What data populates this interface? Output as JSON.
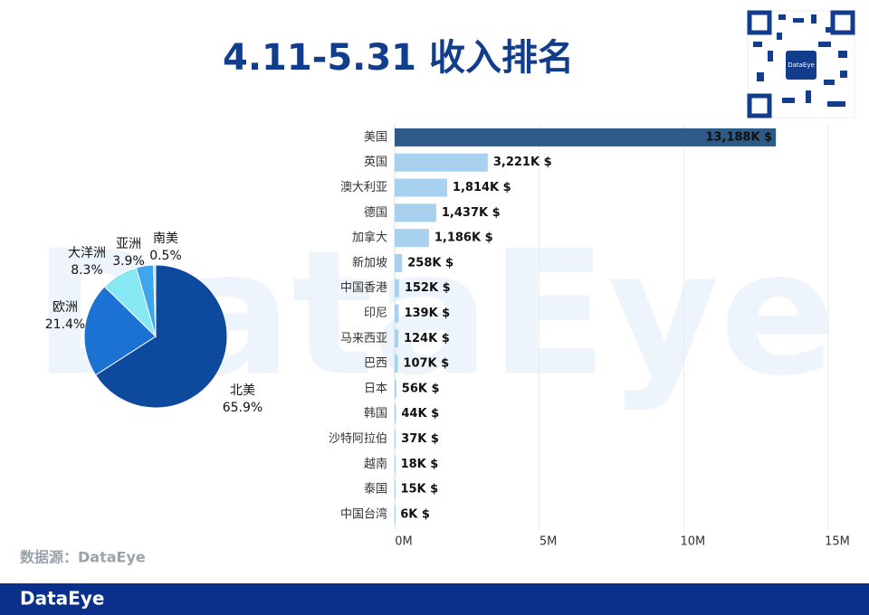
{
  "title": "4.11-5.31 收入排名",
  "watermark": "DataEye",
  "source": "数据源：DataEye",
  "brand": "DataEye",
  "chart_data": [
    {
      "type": "pie",
      "categories": [
        "北美",
        "欧洲",
        "大洋洲",
        "亚洲",
        "南美"
      ],
      "values": [
        65.9,
        21.4,
        8.3,
        3.9,
        0.5
      ],
      "value_labels": [
        "65.9%",
        "21.4%",
        "8.3%",
        "3.9%",
        "0.5%"
      ],
      "colors": [
        "#0d4a9e",
        "#1c72d2",
        "#86e8f2",
        "#3ea6ea",
        "#b9dcf5"
      ]
    },
    {
      "type": "hbar",
      "categories": [
        "美国",
        "英国",
        "澳大利亚",
        "德国",
        "加拿大",
        "新加坡",
        "中国香港",
        "印尼",
        "马来西亚",
        "巴西",
        "日本",
        "韩国",
        "沙特阿拉伯",
        "越南",
        "泰国",
        "中国台湾"
      ],
      "values": [
        13188000,
        3221000,
        1814000,
        1437000,
        1186000,
        258000,
        152000,
        139000,
        124000,
        107000,
        56000,
        44000,
        37000,
        18000,
        15000,
        6000
      ],
      "value_labels": [
        "13,188K $",
        "3,221K $",
        "1,814K $",
        "1,437K $",
        "1,186K $",
        "258K $",
        "152K $",
        "139K $",
        "124K $",
        "107K $",
        "56K $",
        "44K $",
        "37K $",
        "18K $",
        "15K $",
        "6K $"
      ],
      "colors": [
        "#2d5a86",
        "#a8d0ef",
        "#a8d0ef",
        "#a8d0ef",
        "#a8d0ef",
        "#a8d0ef",
        "#a8d0ef",
        "#a8d0ef",
        "#a8d0ef",
        "#a8d0ef",
        "#a8d0ef",
        "#a8d0ef",
        "#a8d0ef",
        "#a8d0ef",
        "#a8d0ef",
        "#a8d0ef"
      ],
      "xlim": [
        0,
        15000000
      ],
      "xticks": [
        {
          "value": 0,
          "label": "0M"
        },
        {
          "value": 5000000,
          "label": "5M"
        },
        {
          "value": 10000000,
          "label": "10M"
        },
        {
          "value": 15000000,
          "label": "15M"
        }
      ],
      "grid": true
    }
  ]
}
